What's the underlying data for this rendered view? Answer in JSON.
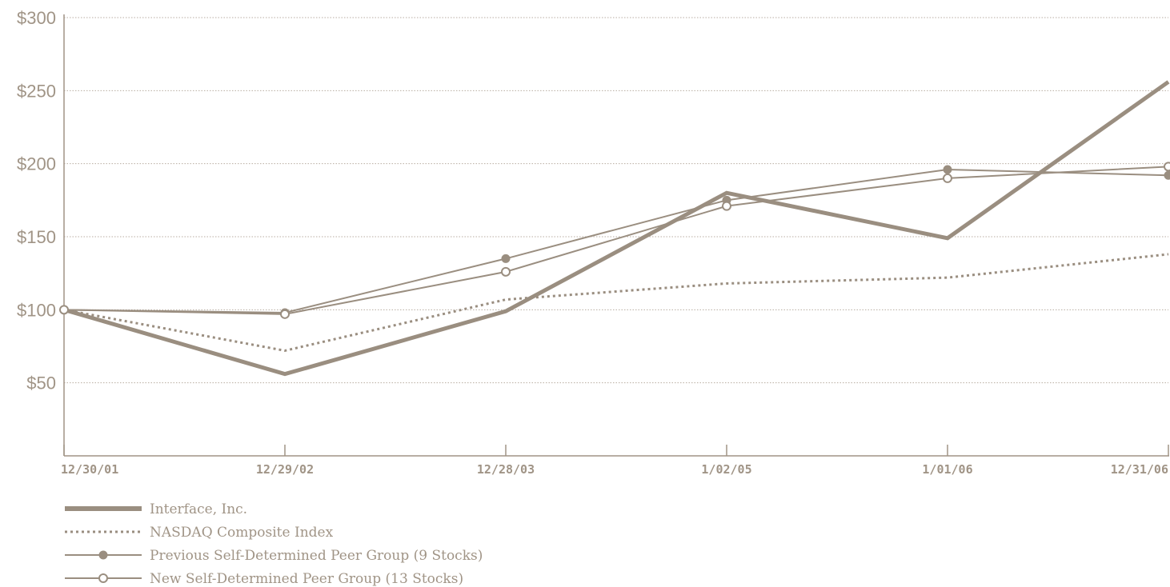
{
  "chart_data": {
    "type": "line",
    "x": [
      "12/30/01",
      "12/29/02",
      "12/28/03",
      "1/02/05",
      "1/01/06",
      "12/31/06"
    ],
    "ylim": [
      0,
      300
    ],
    "yticks": [
      50,
      100,
      150,
      200,
      250,
      300
    ],
    "ytick_labels": [
      "$50",
      "$100",
      "$150",
      "$200",
      "$250",
      "$300"
    ],
    "grid": true,
    "legend_position": "bottom-left",
    "series": [
      {
        "name": "Interface, Inc.",
        "values": [
          100,
          56,
          99,
          180,
          149,
          256
        ],
        "style": "thick",
        "color": "#9a8e80"
      },
      {
        "name": "NASDAQ Composite Index",
        "values": [
          100,
          72,
          107,
          118,
          122,
          138
        ],
        "style": "dotted",
        "color": "#9a8e80"
      },
      {
        "name": "Previous Self-Determined Peer Group (9 Stocks)",
        "values": [
          100,
          98,
          135,
          175,
          196,
          192
        ],
        "style": "filled-marker",
        "color": "#9a8e80"
      },
      {
        "name": "New Self-Determined Peer Group (13 Stocks)",
        "values": [
          100,
          97,
          126,
          171,
          190,
          198
        ],
        "style": "open-marker",
        "color": "#9a8e80"
      }
    ]
  }
}
